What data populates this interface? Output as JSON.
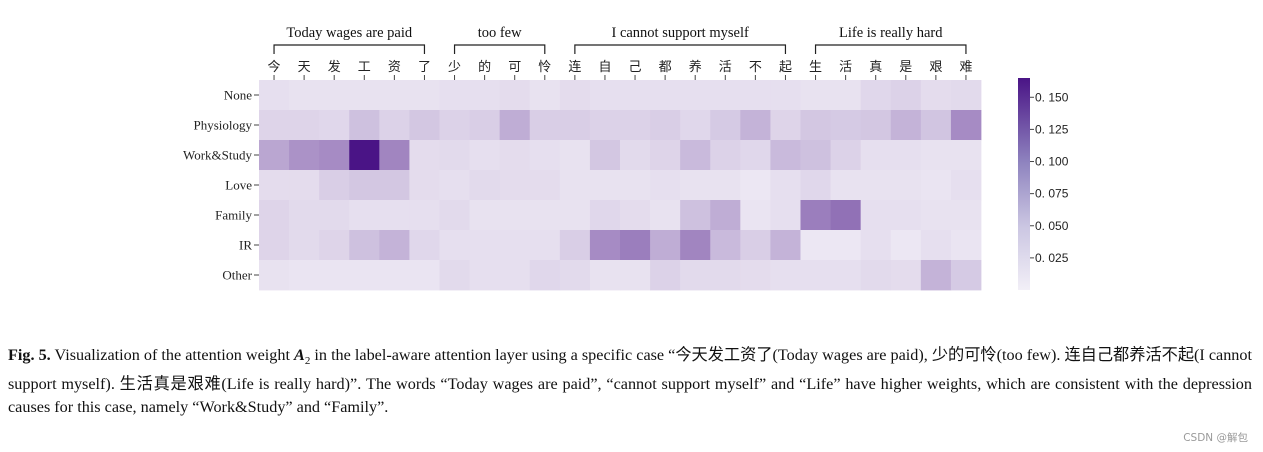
{
  "chart_data": {
    "type": "heatmap",
    "x_tokens": [
      "今",
      "天",
      "发",
      "工",
      "资",
      "了",
      "少",
      "的",
      "可",
      "怜",
      "连",
      "自",
      "己",
      "都",
      "养",
      "活",
      "不",
      "起",
      "生",
      "活",
      "真",
      "是",
      "艰",
      "难"
    ],
    "x_groups": [
      {
        "label": "Today wages are paid",
        "start": 0,
        "end": 5
      },
      {
        "label": "too few",
        "start": 6,
        "end": 9
      },
      {
        "label": "I cannot support myself",
        "start": 10,
        "end": 17
      },
      {
        "label": "Life is really hard",
        "start": 18,
        "end": 23
      }
    ],
    "y_labels": [
      "None",
      "Physiology",
      "Work&Study",
      "Love",
      "Family",
      "IR",
      "Other"
    ],
    "values": [
      [
        0.012,
        0.01,
        0.01,
        0.01,
        0.01,
        0.01,
        0.012,
        0.012,
        0.014,
        0.01,
        0.014,
        0.012,
        0.012,
        0.012,
        0.012,
        0.012,
        0.012,
        0.012,
        0.01,
        0.01,
        0.018,
        0.022,
        0.014,
        0.016
      ],
      [
        0.02,
        0.02,
        0.018,
        0.035,
        0.022,
        0.03,
        0.022,
        0.025,
        0.05,
        0.025,
        0.025,
        0.022,
        0.022,
        0.025,
        0.018,
        0.028,
        0.045,
        0.02,
        0.03,
        0.028,
        0.03,
        0.045,
        0.032,
        0.075
      ],
      [
        0.055,
        0.07,
        0.075,
        0.165,
        0.08,
        0.014,
        0.016,
        0.012,
        0.014,
        0.012,
        0.01,
        0.03,
        0.016,
        0.02,
        0.04,
        0.022,
        0.018,
        0.04,
        0.035,
        0.022,
        0.012,
        0.012,
        0.01,
        0.01
      ],
      [
        0.014,
        0.014,
        0.025,
        0.03,
        0.03,
        0.014,
        0.012,
        0.016,
        0.014,
        0.014,
        0.01,
        0.01,
        0.01,
        0.012,
        0.01,
        0.01,
        0.006,
        0.012,
        0.018,
        0.01,
        0.01,
        0.01,
        0.008,
        0.012
      ],
      [
        0.02,
        0.016,
        0.016,
        0.012,
        0.012,
        0.012,
        0.016,
        0.01,
        0.01,
        0.01,
        0.01,
        0.018,
        0.014,
        0.01,
        0.035,
        0.05,
        0.008,
        0.012,
        0.085,
        0.095,
        0.012,
        0.012,
        0.01,
        0.01
      ],
      [
        0.02,
        0.016,
        0.02,
        0.035,
        0.045,
        0.018,
        0.012,
        0.012,
        0.012,
        0.012,
        0.025,
        0.075,
        0.085,
        0.05,
        0.08,
        0.04,
        0.025,
        0.045,
        0.006,
        0.006,
        0.012,
        0.006,
        0.012,
        0.008
      ],
      [
        0.01,
        0.008,
        0.008,
        0.008,
        0.008,
        0.008,
        0.016,
        0.012,
        0.012,
        0.018,
        0.016,
        0.01,
        0.01,
        0.022,
        0.016,
        0.016,
        0.014,
        0.012,
        0.012,
        0.012,
        0.016,
        0.014,
        0.045,
        0.028
      ]
    ],
    "colorbar": {
      "ticks": [
        0.15,
        0.125,
        0.1,
        0.075,
        0.05,
        0.025
      ],
      "tick_labels": [
        "0. 150",
        "0. 125",
        "0. 100",
        "0. 075",
        "0. 050",
        "0. 025"
      ],
      "range": [
        0.0,
        0.165
      ]
    },
    "colormap": [
      "#f2eff7",
      "#4a1486"
    ]
  },
  "caption": {
    "label": "Fig. 5.",
    "text_before_symbol": "Visualization of the attention weight",
    "symbol": "A",
    "symbol_sub": "2",
    "text_after_symbol": "in the label-aware attention layer using a specific case “今天发工资了(Today wages are paid), 少的可怜(too few). 连自己都养活不起(I cannot support myself). 生活真是艰难(Life is really hard)”. The words “Today wages are paid”, “cannot support myself” and “Life” have higher weights, which are consistent with the depression causes for this case, namely “Work&Study” and “Family”."
  },
  "watermark": "CSDN @解包"
}
